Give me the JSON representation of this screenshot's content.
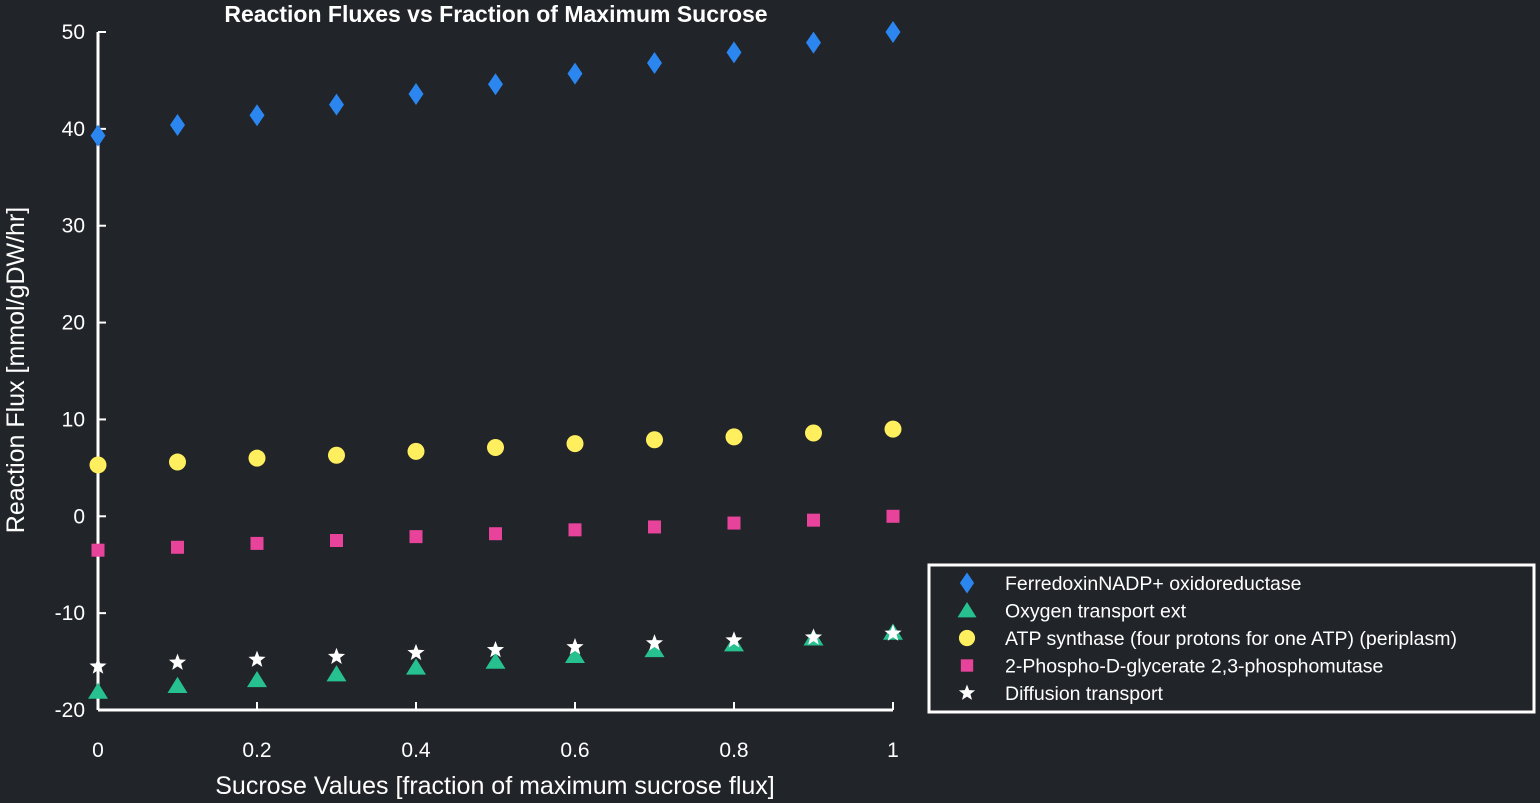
{
  "chart_data": {
    "type": "scatter",
    "title": "Reaction Fluxes vs Fraction of Maximum Sucrose",
    "xlabel": "Sucrose Values [fraction of maximum sucrose flux]",
    "ylabel": "Reaction Flux [mmol/gDW/hr]",
    "xlim": [
      0,
      1
    ],
    "ylim": [
      -20,
      50
    ],
    "xticks": [
      0,
      0.2,
      0.4,
      0.6,
      0.8,
      1
    ],
    "xtick_labels": [
      "0",
      "0.2",
      "0.4",
      "0.6",
      "0.8",
      "1"
    ],
    "yticks": [
      -20,
      -10,
      0,
      10,
      20,
      30,
      40,
      50
    ],
    "ytick_labels": [
      "-20",
      "-10",
      "0",
      "10",
      "20",
      "30",
      "40",
      "50"
    ],
    "grid": false,
    "legend_position": "bottom-right (outside axes)",
    "background_color": "#212429",
    "axis_color": "#ffffff",
    "x": [
      0,
      0.1,
      0.2,
      0.3,
      0.4,
      0.5,
      0.6,
      0.7,
      0.8,
      0.9,
      1.0
    ],
    "series": [
      {
        "name": "FerredoxinNADP+ oxidoreductase",
        "marker": "diamond",
        "color": "#2b86f0",
        "values": [
          39.3,
          40.4,
          41.4,
          42.5,
          43.6,
          44.6,
          45.7,
          46.8,
          47.9,
          48.9,
          50.0
        ]
      },
      {
        "name": "Oxygen transport ext",
        "marker": "triangle",
        "color": "#27c08f",
        "values": [
          -18.1,
          -17.5,
          -16.9,
          -16.3,
          -15.6,
          -15.0,
          -14.4,
          -13.8,
          -13.2,
          -12.6,
          -12.0
        ]
      },
      {
        "name": "ATP synthase (four protons for one ATP) (periplasm)",
        "marker": "circle",
        "color": "#ffef5e",
        "values": [
          5.3,
          5.6,
          6.0,
          6.3,
          6.7,
          7.1,
          7.5,
          7.9,
          8.2,
          8.6,
          9.0
        ]
      },
      {
        "name": "2-Phospho-D-glycerate 2,3-phosphomutase",
        "marker": "square",
        "color": "#e8439b",
        "values": [
          -3.5,
          -3.2,
          -2.8,
          -2.5,
          -2.1,
          -1.8,
          -1.4,
          -1.1,
          -0.7,
          -0.4,
          0.0
        ]
      },
      {
        "name": "Diffusion transport",
        "marker": "star",
        "color": "#ffffff",
        "values": [
          -15.5,
          -15.1,
          -14.8,
          -14.5,
          -14.1,
          -13.8,
          -13.5,
          -13.1,
          -12.8,
          -12.5,
          -12.1
        ]
      }
    ]
  }
}
